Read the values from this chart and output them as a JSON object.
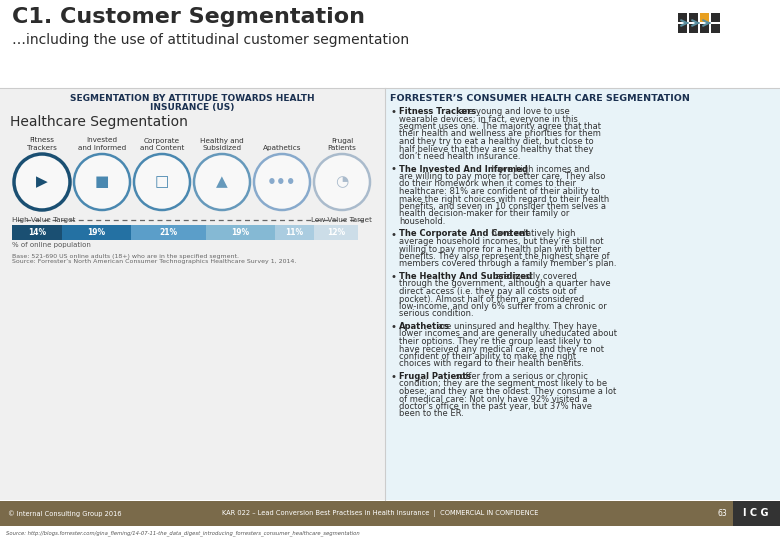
{
  "title": "C1. Customer Segmentation",
  "subtitle": "…including the use of attitudinal customer segmentation",
  "left_heading_line1": "SEGMENTATION BY ATTITUDE TOWARDS HEALTH",
  "left_heading_line2": "INSURANCE (US)",
  "right_heading": "FORRESTER’S CONSUMER HEALTH CARE SEGMENTATION",
  "hc_seg_title": "Healthcare Segmentation",
  "segments": [
    "Fitness\nTrackers",
    "Invested\nand Informed",
    "Corporate\nand Content",
    "Healthy and\nSubsidized",
    "Apathetics",
    "Frugal\nPatients"
  ],
  "percentages": [
    "14%",
    "19%",
    "21%",
    "19%",
    "11%",
    "12%"
  ],
  "pct_values": [
    14,
    19,
    21,
    19,
    11,
    12
  ],
  "bar_colors": [
    "#1a4f72",
    "#2471a3",
    "#5b9ec9",
    "#85b9d4",
    "#aacce0",
    "#ccdde8"
  ],
  "circle_colors": [
    "#1a4f72",
    "#5599bb",
    "#5599bb",
    "#6699aa",
    "#88aabb",
    "#aaccdd"
  ],
  "bullet_bold": [
    "Fitness Trackers",
    "The Invested And Informed",
    "The Corporate And Content",
    "The Healthy And Subsidized",
    "Apathetics",
    "Frugal Patients"
  ],
  "bullet_text": [
    " are young and love to use wearable devices; in fact, everyone in this segment uses one. The majority agree that that their health and wellness are priorities for them and they try to eat a healthy diet, but close to half believe that they are so healthy that they don’t need health insurance.",
    " have high incomes and are willing to pay more for better care. They also do their homework when it comes to their healthcare: 81% are confident of their ability to make the right choices with regard to their health benefits, and seven in 10 consider them selves a health decision-maker for their family or household.",
    " have relatively high average household incomes, but they’re still not willing to pay more for a health plan with better benefits. They also represent the highest share of members covered through a family member’s plan.",
    " are mostly covered through the government, although a quarter have direct access (i.e. they pay all costs out of pocket). Almost half of them are considered low-income, and only 6% suffer from a chronic or serious condition.",
    " are uninsured and healthy. They have lower incomes and are generally uneducated about their options. They’re the group least likely to have received any medical care, and they’re not confident of their ability to make the right choices with regard to their health benefits.",
    " suffer from a serious or chronic condition; they are the segment most likely to be obese; and they are the oldest. They consume a lot of medical care: Not only have 92% visited a doctor’s office in the past year, but 37% have been to the ER."
  ],
  "footer_left": "© Internal Consulting Group 2016",
  "footer_center": "KAR 022 – Lead Conversion Best Practises in Health Insurance  |  COMMERCIAL IN CONFIDENCE",
  "footer_page": "63",
  "source_text": "Source: http://blogs.forrester.com/gina_fleming/14-07-11-the_data_digest_introducing_forresters_consumer_healthcare_segmentation",
  "base_text_line1": "Base: 521-690 US online adults (18+) who are in the specified segment.",
  "base_text_line2": "Source: Forrester’s North American Consumer Technographics Healthcare Survey 1, 2014.",
  "pct_label": "% of online population",
  "high_val": "High Value Target",
  "low_val": "Low Value Target",
  "bg_color": "#ffffff",
  "footer_bg": "#7a6a4a",
  "icg_bg": "#333333",
  "title_color": "#2c2c2c",
  "heading_color": "#1a3050",
  "left_panel_bg": "#f0f0f0",
  "right_panel_bg": "#e8f3f8"
}
